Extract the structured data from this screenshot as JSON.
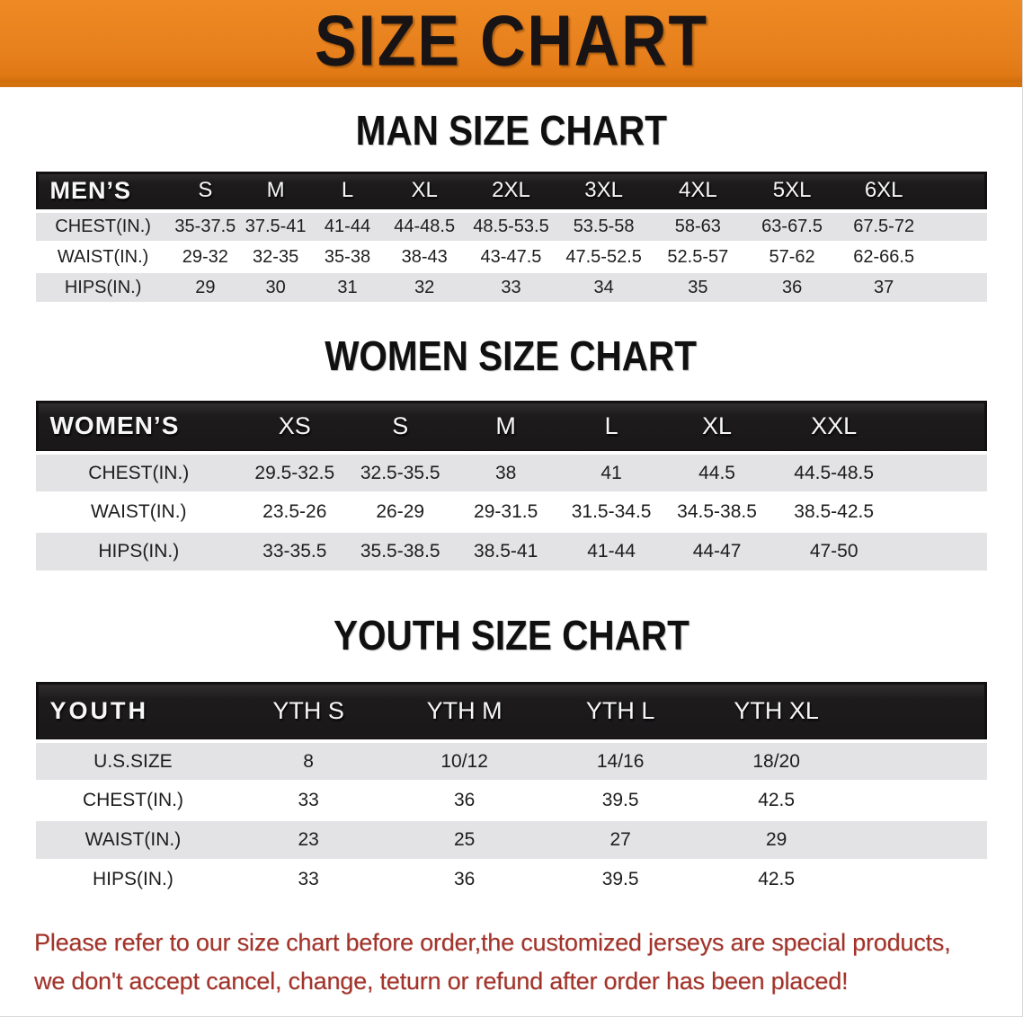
{
  "banner": {
    "title": "SIZE CHART",
    "bg_color": "#E67F1C",
    "text_color": "#181314"
  },
  "colors": {
    "table_header_bg": "#1D1B1C",
    "stripe_gray": "#E3E3E5",
    "stripe_white": "#FFFFFF",
    "disclaimer_red": "#A2332A"
  },
  "sections": [
    {
      "heading": "MAN SIZE CHART",
      "table": {
        "corner_label": "MEN’S",
        "columns": [
          "S",
          "M",
          "L",
          "XL",
          "2XL",
          "3XL",
          "4XL",
          "5XL",
          "6XL"
        ],
        "rows": [
          {
            "label": "CHEST(IN.)",
            "values": [
              "35-37.5",
              "37.5-41",
              "41-44",
              "44-48.5",
              "48.5-53.5",
              "53.5-58",
              "58-63",
              "63-67.5",
              "67.5-72"
            ]
          },
          {
            "label": "WAIST(IN.)",
            "values": [
              "29-32",
              "32-35",
              "35-38",
              "38-43",
              "43-47.5",
              "47.5-52.5",
              "52.5-57",
              "57-62",
              "62-66.5"
            ]
          },
          {
            "label": "HIPS(IN.)",
            "values": [
              "29",
              "30",
              "31",
              "32",
              "33",
              "34",
              "35",
              "36",
              "37"
            ]
          }
        ]
      }
    },
    {
      "heading": "WOMEN SIZE CHART",
      "table": {
        "corner_label": "WOMEN’S",
        "columns": [
          "XS",
          "S",
          "M",
          "L",
          "XL",
          "XXL"
        ],
        "rows": [
          {
            "label": "CHEST(IN.)",
            "values": [
              "29.5-32.5",
              "32.5-35.5",
              "38",
              "41",
              "44.5",
              "44.5-48.5"
            ]
          },
          {
            "label": "WAIST(IN.)",
            "values": [
              "23.5-26",
              "26-29",
              "29-31.5",
              "31.5-34.5",
              "34.5-38.5",
              "38.5-42.5"
            ]
          },
          {
            "label": "HIPS(IN.)",
            "values": [
              "33-35.5",
              "35.5-38.5",
              "38.5-41",
              "41-44",
              "44-47",
              "47-50"
            ]
          }
        ]
      }
    },
    {
      "heading": "YOUTH SIZE CHART",
      "table": {
        "corner_label": "YOUTH",
        "columns": [
          "YTH S",
          "YTH M",
          "YTH L",
          "YTH XL"
        ],
        "rows": [
          {
            "label": "U.S.SIZE",
            "values": [
              "8",
              "10/12",
              "14/16",
              "18/20"
            ]
          },
          {
            "label": "CHEST(IN.)",
            "values": [
              "33",
              "36",
              "39.5",
              "42.5"
            ]
          },
          {
            "label": "WAIST(IN.)",
            "values": [
              "23",
              "25",
              "27",
              "29"
            ]
          },
          {
            "label": "HIPS(IN.)",
            "values": [
              "33",
              "36",
              "39.5",
              "42.5"
            ]
          }
        ]
      }
    }
  ],
  "disclaimer": {
    "line1": "Please refer to our size chart before order,the customized jerseys are special products,",
    "line2": "we don't accept cancel, change, teturn or refund after order has been placed!"
  }
}
